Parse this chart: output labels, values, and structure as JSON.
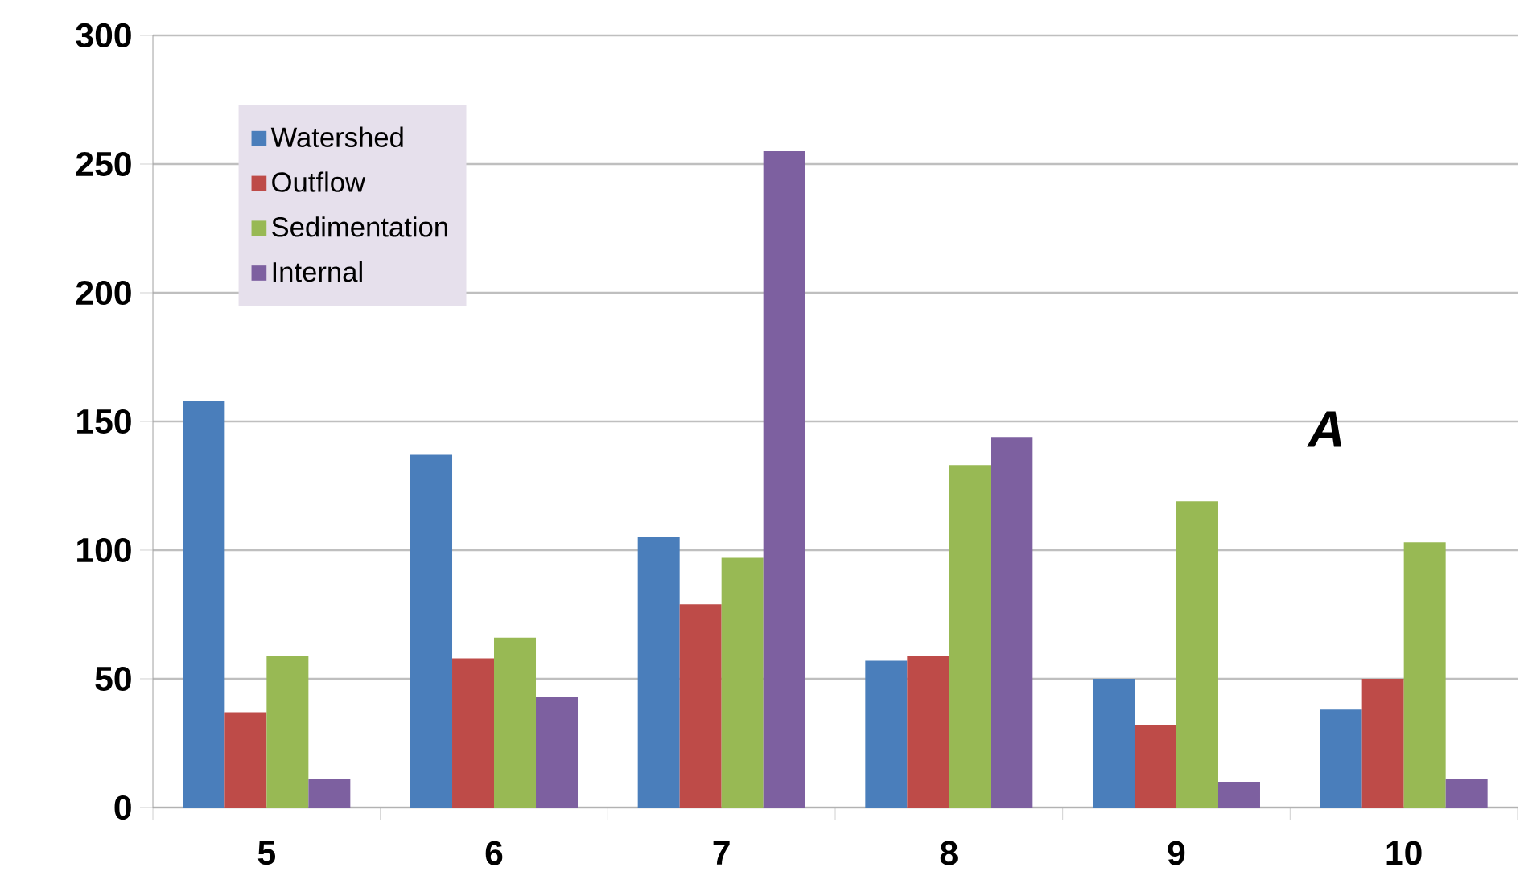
{
  "chart_data": {
    "type": "bar",
    "categories": [
      "5",
      "6",
      "7",
      "8",
      "9",
      "10"
    ],
    "series": [
      {
        "name": "Watershed",
        "color": "#4a7ebb",
        "values": [
          158,
          137,
          105,
          57,
          50,
          38
        ]
      },
      {
        "name": "Outflow",
        "color": "#be4b48",
        "values": [
          37,
          58,
          79,
          59,
          32,
          50
        ]
      },
      {
        "name": "Sedimentation",
        "color": "#98b954",
        "values": [
          59,
          66,
          97,
          133,
          119,
          103
        ]
      },
      {
        "name": "Internal",
        "color": "#7d60a0",
        "values": [
          11,
          43,
          255,
          144,
          10,
          11
        ]
      }
    ],
    "ylim": [
      0,
      300
    ],
    "yticks": [
      0,
      50,
      100,
      150,
      200,
      250,
      300
    ],
    "grid": "y",
    "legend": "top left",
    "annotations": [
      "A"
    ]
  }
}
